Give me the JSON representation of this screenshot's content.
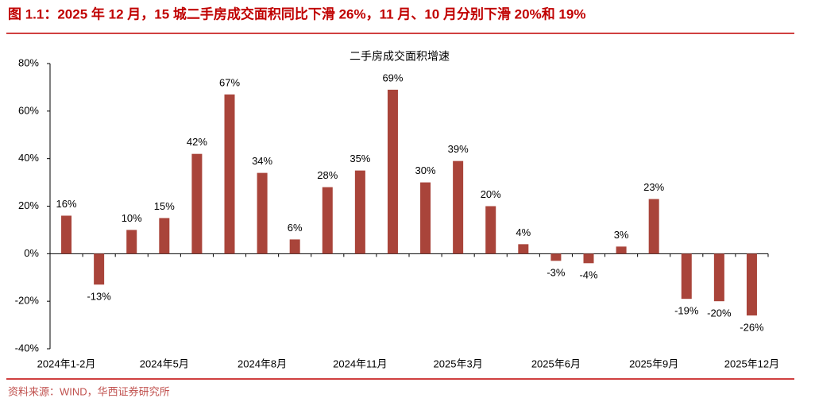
{
  "header": {
    "caption": "图 1.1：2025 年 12 月，15 城二手房成交面积同比下滑 26%，11 月、10 月分别下滑 20%和 19%"
  },
  "chart_data": {
    "type": "bar",
    "title": "二手房成交面积增速",
    "categories": [
      "2024年1-2月",
      null,
      null,
      "2024年5月",
      null,
      null,
      "2024年8月",
      null,
      null,
      "2024年11月",
      null,
      null,
      "2025年3月",
      null,
      null,
      "2025年6月",
      null,
      null,
      "2025年9月",
      null,
      null,
      "2025年12月"
    ],
    "values": [
      16,
      -13,
      10,
      15,
      42,
      67,
      34,
      6,
      28,
      35,
      69,
      30,
      39,
      20,
      4,
      -3,
      -4,
      3,
      23,
      -19,
      -20,
      -26
    ],
    "value_labels": [
      "16%",
      "-13%",
      "10%",
      "15%",
      "42%",
      "67%",
      "34%",
      "6%",
      "28%",
      "35%",
      "69%",
      "30%",
      "39%",
      "20%",
      "4%",
      "-3%",
      "-4%",
      "3%",
      "23%",
      "-19%",
      "-20%",
      "-26%"
    ],
    "color": "#a9443a",
    "ylim": [
      -40,
      80
    ],
    "yticks": [
      {
        "value": -40,
        "label": "-40%"
      },
      {
        "value": -20,
        "label": "-20%"
      },
      {
        "value": 0,
        "label": "0%"
      },
      {
        "value": 20,
        "label": "20%"
      },
      {
        "value": 40,
        "label": "40%"
      },
      {
        "value": 60,
        "label": "60%"
      },
      {
        "value": 80,
        "label": "80%"
      }
    ],
    "grid": false
  },
  "footer": {
    "source": "资料来源：WIND，华西证券研究所"
  }
}
